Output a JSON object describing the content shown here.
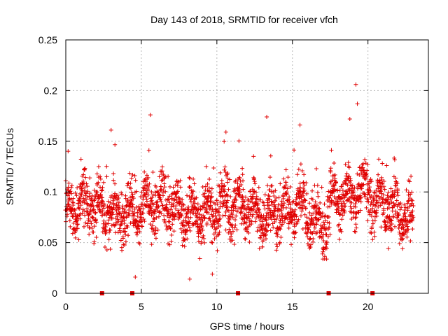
{
  "chart_data": {
    "type": "scatter",
    "title": "Day 143 of 2018, SRMTID for receiver vfch",
    "xlabel": "GPS time / hours",
    "ylabel": "SRMTID / TECUs",
    "xlim": [
      0,
      24
    ],
    "ylim": [
      0,
      0.25
    ],
    "xticks": [
      0,
      5,
      10,
      15,
      20
    ],
    "xtick_labels": [
      "0",
      "5",
      "10",
      "15",
      "20"
    ],
    "yticks": [
      0,
      0.05,
      0.1,
      0.15,
      0.2,
      0.25
    ],
    "ytick_labels": [
      "0",
      "0.05",
      "0.1",
      "0.15",
      "0.2",
      "0.25"
    ],
    "grid": true,
    "marker": "+",
    "color": "#e00000",
    "series_name": "SRMTID",
    "x_range_of_data": [
      0.0,
      23.0
    ],
    "outliers": [
      {
        "x": 19.2,
        "y": 0.206
      },
      {
        "x": 19.3,
        "y": 0.187
      },
      {
        "x": 5.6,
        "y": 0.176
      },
      {
        "x": 13.3,
        "y": 0.174
      },
      {
        "x": 18.8,
        "y": 0.172
      },
      {
        "x": 15.5,
        "y": 0.166
      },
      {
        "x": 3.0,
        "y": 0.161
      },
      {
        "x": 10.6,
        "y": 0.159
      },
      {
        "x": 4.6,
        "y": 0.016
      },
      {
        "x": 8.2,
        "y": 0.014
      },
      {
        "x": 9.7,
        "y": 0.019
      }
    ],
    "markers_on_x_axis": [
      2.4,
      4.4,
      11.4,
      17.4,
      20.3
    ]
  }
}
